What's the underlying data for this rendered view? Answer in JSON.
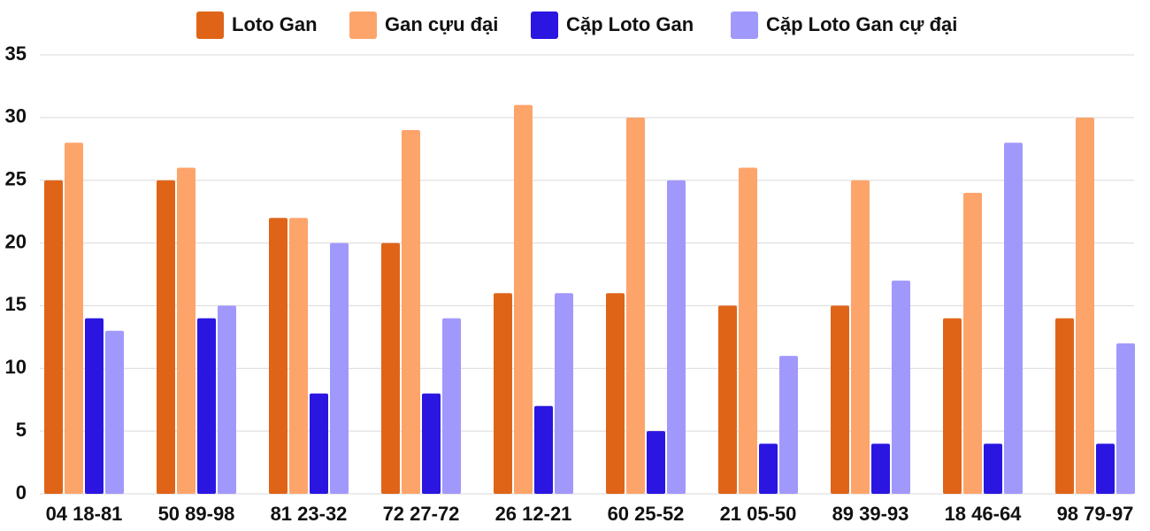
{
  "chart_data": {
    "type": "bar",
    "categories": [
      "04 18-81",
      "50 89-98",
      "81 23-32",
      "72 27-72",
      "26 12-21",
      "60 25-52",
      "21 05-50",
      "89 39-93",
      "18 46-64",
      "98 79-97"
    ],
    "series": [
      {
        "name": "Loto Gan",
        "color": "#e06418",
        "values": [
          25,
          25,
          22,
          20,
          16,
          16,
          15,
          15,
          14,
          14
        ]
      },
      {
        "name": "Gan cựu đại",
        "color": "#fda46a",
        "values": [
          28,
          26,
          22,
          29,
          31,
          30,
          26,
          25,
          24,
          30
        ]
      },
      {
        "name": "Cặp Loto Gan",
        "color": "#2a16e0",
        "values": [
          14,
          14,
          8,
          8,
          7,
          5,
          4,
          4,
          4,
          4
        ]
      },
      {
        "name": "Cặp Loto Gan cự đại",
        "color": "#a198fc",
        "values": [
          13,
          15,
          20,
          14,
          16,
          25,
          11,
          17,
          28,
          12
        ]
      }
    ],
    "ylim": [
      0,
      35
    ],
    "yticks": [
      0,
      5,
      10,
      15,
      20,
      25,
      30,
      35
    ],
    "grid": true,
    "legend": "top"
  }
}
